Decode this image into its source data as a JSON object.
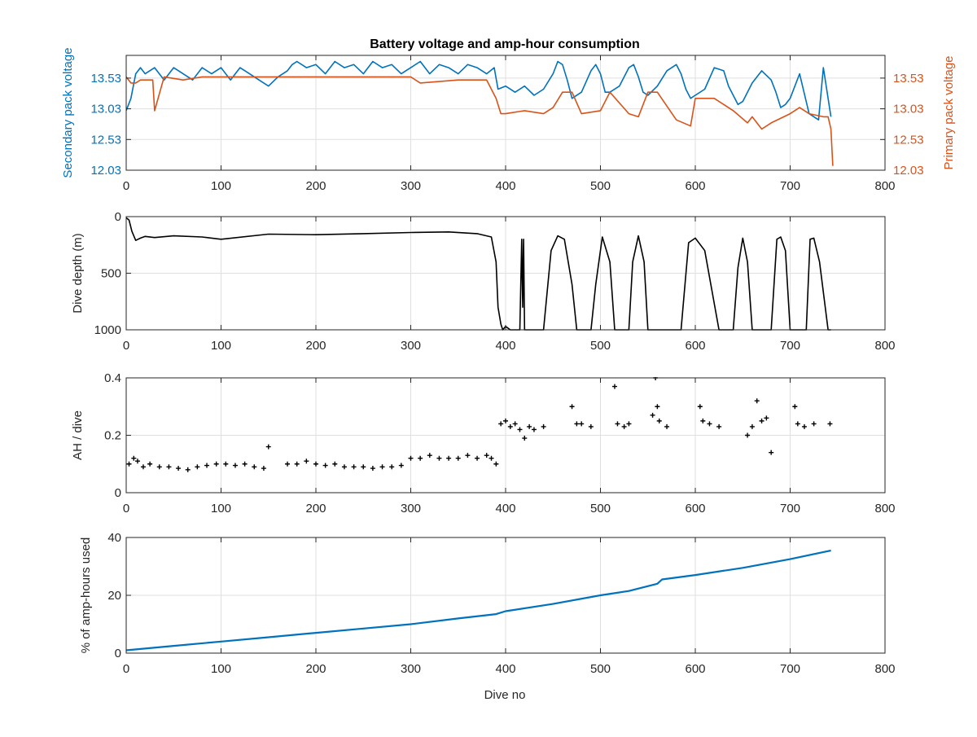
{
  "figure": {
    "title": "Battery voltage and amp-hour consumption",
    "xlabel": "Dive no"
  },
  "colors": {
    "secondary": "#0072BD",
    "primary": "#D95319",
    "black": "#000000",
    "grid": "#dfdfdf",
    "axis": "#262626"
  },
  "chart_data": [
    {
      "type": "line",
      "title": "Battery voltage and amp-hour consumption",
      "xlabel": "",
      "ylabel": "Secondary pack voltage",
      "ylabel_right": "Primary pack voltage",
      "xlim": [
        0,
        800
      ],
      "ylim": [
        12.03,
        13.9
      ],
      "ylim_right": [
        12.03,
        13.9
      ],
      "xticks": [
        0,
        100,
        200,
        300,
        400,
        500,
        600,
        700,
        800
      ],
      "yticks": [
        12.03,
        12.53,
        13.03,
        13.53
      ],
      "ytick_labels": [
        "12.03",
        "12.53",
        "13.03",
        "13.53"
      ],
      "grid": true,
      "series": [
        {
          "name": "Secondary pack voltage",
          "axis": "left",
          "color": "#0072BD",
          "x": [
            0,
            5,
            10,
            15,
            20,
            30,
            40,
            50,
            60,
            70,
            80,
            90,
            100,
            110,
            120,
            130,
            140,
            150,
            160,
            170,
            175,
            180,
            190,
            200,
            210,
            220,
            230,
            240,
            250,
            260,
            270,
            280,
            290,
            300,
            310,
            320,
            330,
            340,
            350,
            360,
            370,
            380,
            388,
            392,
            400,
            410,
            420,
            430,
            440,
            450,
            455,
            460,
            465,
            470,
            480,
            490,
            495,
            500,
            505,
            510,
            520,
            530,
            535,
            540,
            545,
            550,
            560,
            570,
            580,
            585,
            590,
            595,
            600,
            610,
            620,
            630,
            635,
            640,
            645,
            650,
            660,
            670,
            680,
            685,
            690,
            695,
            700,
            710,
            720,
            730,
            735,
            740,
            743
          ],
          "y": [
            13.0,
            13.2,
            13.6,
            13.7,
            13.6,
            13.7,
            13.5,
            13.7,
            13.6,
            13.5,
            13.7,
            13.6,
            13.7,
            13.5,
            13.7,
            13.6,
            13.5,
            13.4,
            13.55,
            13.65,
            13.75,
            13.8,
            13.7,
            13.75,
            13.6,
            13.8,
            13.7,
            13.75,
            13.6,
            13.8,
            13.7,
            13.75,
            13.6,
            13.7,
            13.8,
            13.6,
            13.75,
            13.7,
            13.6,
            13.75,
            13.7,
            13.6,
            13.7,
            13.35,
            13.4,
            13.3,
            13.4,
            13.25,
            13.35,
            13.6,
            13.8,
            13.75,
            13.5,
            13.2,
            13.3,
            13.65,
            13.75,
            13.6,
            13.3,
            13.3,
            13.4,
            13.7,
            13.75,
            13.55,
            13.3,
            13.25,
            13.4,
            13.65,
            13.75,
            13.6,
            13.35,
            13.2,
            13.25,
            13.35,
            13.7,
            13.65,
            13.4,
            13.25,
            13.1,
            13.15,
            13.45,
            13.65,
            13.5,
            13.3,
            13.05,
            13.1,
            13.2,
            13.6,
            12.95,
            12.85,
            13.7,
            13.2,
            12.9
          ]
        },
        {
          "name": "Primary pack voltage",
          "axis": "right",
          "color": "#D95319",
          "x": [
            0,
            5,
            10,
            15,
            20,
            28,
            30,
            40,
            60,
            80,
            100,
            150,
            200,
            250,
            300,
            310,
            350,
            380,
            390,
            395,
            400,
            420,
            440,
            450,
            460,
            470,
            480,
            500,
            510,
            530,
            540,
            550,
            560,
            580,
            595,
            600,
            620,
            640,
            655,
            660,
            670,
            680,
            700,
            710,
            720,
            735,
            740,
            743,
            745
          ],
          "y": [
            13.55,
            13.45,
            13.45,
            13.5,
            13.5,
            13.5,
            13.0,
            13.55,
            13.5,
            13.55,
            13.55,
            13.55,
            13.55,
            13.55,
            13.55,
            13.45,
            13.5,
            13.5,
            13.2,
            12.95,
            12.95,
            13.0,
            12.95,
            13.05,
            13.3,
            13.3,
            12.95,
            13.0,
            13.3,
            12.95,
            12.9,
            13.3,
            13.3,
            12.85,
            12.75,
            13.2,
            13.2,
            13.0,
            12.8,
            12.9,
            12.7,
            12.8,
            12.95,
            13.05,
            12.95,
            12.9,
            12.9,
            12.7,
            12.1
          ]
        }
      ]
    },
    {
      "type": "line",
      "title": "",
      "xlabel": "",
      "ylabel": "Dive depth (m)",
      "xlim": [
        0,
        800
      ],
      "ylim": [
        0,
        1000
      ],
      "y_reversed": true,
      "xticks": [
        0,
        100,
        200,
        300,
        400,
        500,
        600,
        700,
        800
      ],
      "yticks": [
        0,
        500,
        1000
      ],
      "grid": true,
      "series": [
        {
          "name": "",
          "color": "#000000",
          "x": [
            0,
            3,
            6,
            10,
            15,
            20,
            30,
            50,
            80,
            100,
            150,
            200,
            250,
            300,
            340,
            370,
            385,
            390,
            392,
            395,
            397,
            400,
            405,
            410,
            415,
            417,
            418,
            419,
            420,
            421,
            422,
            430,
            440,
            448,
            455,
            462,
            470,
            475,
            490,
            495,
            502,
            510,
            515,
            530,
            534,
            540,
            546,
            550,
            560,
            585,
            593,
            600,
            610,
            625,
            635,
            640,
            645,
            650,
            655,
            660,
            665,
            670,
            680,
            686,
            690,
            695,
            700,
            710,
            717,
            721,
            725,
            731,
            740,
            743
          ],
          "y": [
            10,
            30,
            130,
            210,
            190,
            175,
            185,
            170,
            180,
            200,
            155,
            160,
            150,
            140,
            135,
            150,
            180,
            400,
            800,
            950,
            1000,
            970,
            1000,
            1000,
            1000,
            200,
            800,
            200,
            1000,
            1000,
            1000,
            1000,
            1000,
            300,
            170,
            200,
            600,
            1000,
            1000,
            600,
            180,
            400,
            1000,
            1000,
            400,
            170,
            400,
            1000,
            1000,
            1000,
            230,
            190,
            300,
            1000,
            1000,
            1000,
            450,
            190,
            400,
            1000,
            1000,
            1000,
            1000,
            200,
            180,
            300,
            1000,
            1000,
            1000,
            200,
            190,
            400,
            1000,
            1000
          ]
        }
      ]
    },
    {
      "type": "scatter",
      "title": "",
      "xlabel": "",
      "ylabel": "AH / dive",
      "xlim": [
        0,
        800
      ],
      "ylim": [
        0,
        0.4
      ],
      "xticks": [
        0,
        100,
        200,
        300,
        400,
        500,
        600,
        700,
        800
      ],
      "yticks": [
        0,
        0.2,
        0.4
      ],
      "grid": true,
      "series": [
        {
          "name": "",
          "color": "#000000",
          "x": [
            3,
            8,
            12,
            18,
            25,
            35,
            45,
            55,
            65,
            75,
            85,
            95,
            105,
            115,
            125,
            135,
            145,
            150,
            170,
            180,
            190,
            200,
            210,
            220,
            230,
            240,
            250,
            260,
            270,
            280,
            290,
            300,
            310,
            320,
            330,
            340,
            350,
            360,
            370,
            380,
            385,
            390,
            395,
            400,
            405,
            410,
            415,
            420,
            425,
            430,
            440,
            470,
            475,
            480,
            490,
            515,
            518,
            525,
            530,
            555,
            558,
            560,
            562,
            570,
            605,
            608,
            615,
            625,
            655,
            660,
            665,
            670,
            675,
            680,
            705,
            708,
            715,
            725,
            742
          ],
          "y": [
            0.1,
            0.12,
            0.11,
            0.09,
            0.1,
            0.09,
            0.09,
            0.085,
            0.08,
            0.09,
            0.095,
            0.1,
            0.1,
            0.095,
            0.1,
            0.09,
            0.085,
            0.16,
            0.1,
            0.1,
            0.11,
            0.1,
            0.095,
            0.1,
            0.09,
            0.09,
            0.09,
            0.085,
            0.09,
            0.09,
            0.095,
            0.12,
            0.12,
            0.13,
            0.12,
            0.12,
            0.12,
            0.13,
            0.12,
            0.13,
            0.12,
            0.1,
            0.24,
            0.25,
            0.23,
            0.24,
            0.22,
            0.19,
            0.23,
            0.22,
            0.23,
            0.3,
            0.24,
            0.24,
            0.23,
            0.37,
            0.24,
            0.23,
            0.24,
            0.27,
            0.4,
            0.3,
            0.25,
            0.23,
            0.3,
            0.25,
            0.24,
            0.23,
            0.2,
            0.23,
            0.32,
            0.25,
            0.26,
            0.14,
            0.3,
            0.24,
            0.23,
            0.24,
            0.24
          ]
        }
      ]
    },
    {
      "type": "line",
      "title": "",
      "xlabel": "Dive no",
      "ylabel": "% of amp-hours used",
      "xlim": [
        0,
        800
      ],
      "ylim": [
        0,
        40
      ],
      "xticks": [
        0,
        100,
        200,
        300,
        400,
        500,
        600,
        700,
        800
      ],
      "yticks": [
        0,
        20,
        40
      ],
      "grid": true,
      "series": [
        {
          "name": "",
          "color": "#0072BD",
          "x": [
            0,
            50,
            100,
            150,
            200,
            250,
            300,
            350,
            390,
            400,
            450,
            500,
            530,
            560,
            565,
            600,
            650,
            700,
            743
          ],
          "y": [
            1,
            2.5,
            4,
            5.5,
            7,
            8.5,
            10,
            12,
            13.5,
            14.5,
            17,
            20,
            21.5,
            24,
            25.5,
            27,
            29.5,
            32.5,
            35.5
          ]
        }
      ]
    }
  ]
}
